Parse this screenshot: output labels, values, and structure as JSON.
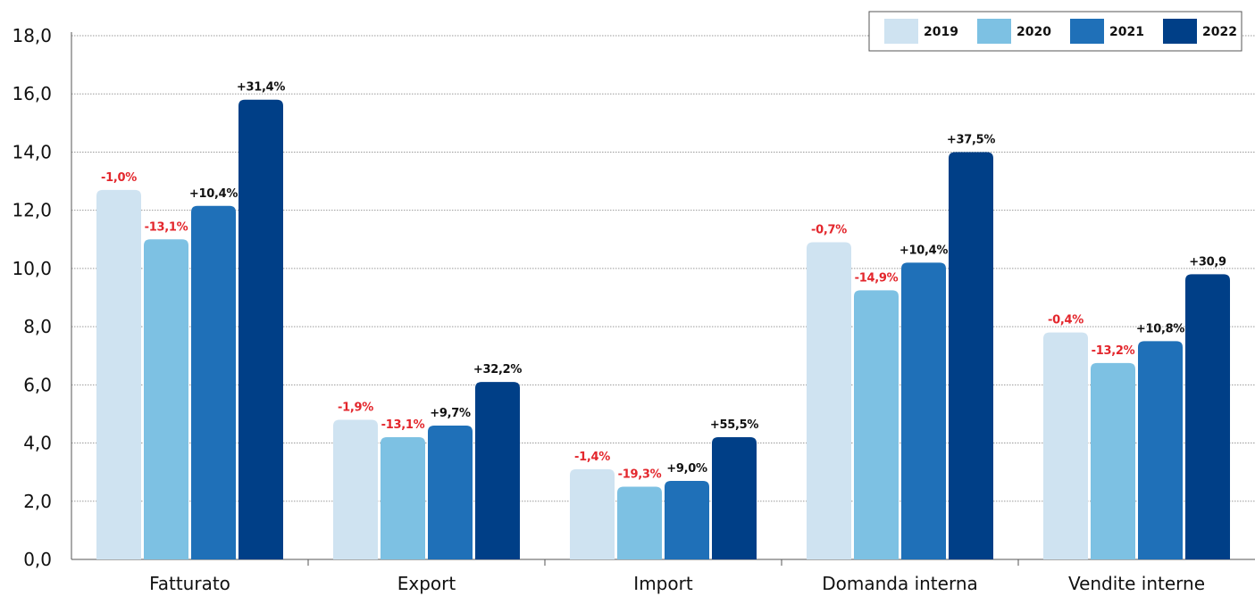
{
  "chart_data": {
    "type": "bar",
    "title": "",
    "xlabel": "",
    "ylabel": "",
    "ylim": [
      0,
      18
    ],
    "y_ticks": [
      "0,0",
      "2,0",
      "4,0",
      "6,0",
      "8,0",
      "10,0",
      "12,0",
      "14,0",
      "16,0",
      "18,0"
    ],
    "grid": true,
    "legend_position": "top-right",
    "categories": [
      "Fatturato",
      "Export",
      "Import",
      "Domanda interna",
      "Vendite interne"
    ],
    "series": [
      {
        "name": "2019",
        "color": "#cfe3f1",
        "values": [
          12.7,
          4.8,
          3.1,
          10.9,
          7.8
        ],
        "labels": [
          "-1,0%",
          "-1,9%",
          "-1,4%",
          "-0,7%",
          "-0,4%"
        ]
      },
      {
        "name": "2020",
        "color": "#7dc1e3",
        "values": [
          11.0,
          4.2,
          2.5,
          9.25,
          6.75
        ],
        "labels": [
          "-13,1%",
          "-13,1%",
          "-19,3%",
          "-14,9%",
          "-13,2%"
        ]
      },
      {
        "name": "2021",
        "color": "#1f70b8",
        "values": [
          12.15,
          4.6,
          2.7,
          10.2,
          7.5
        ],
        "labels": [
          "+10,4%",
          "+9,7%",
          "+9,0%",
          "+10,4%",
          "+10,8%"
        ]
      },
      {
        "name": "2022",
        "color": "#003f87",
        "values": [
          15.8,
          6.1,
          4.2,
          14.0,
          9.8
        ],
        "labels": [
          "+31,4%",
          "+32,2%",
          "+55,5%",
          "+37,5%",
          "+30,9"
        ]
      }
    ],
    "negative_label_color": "#e3262c",
    "positive_label_color": "#111111"
  }
}
